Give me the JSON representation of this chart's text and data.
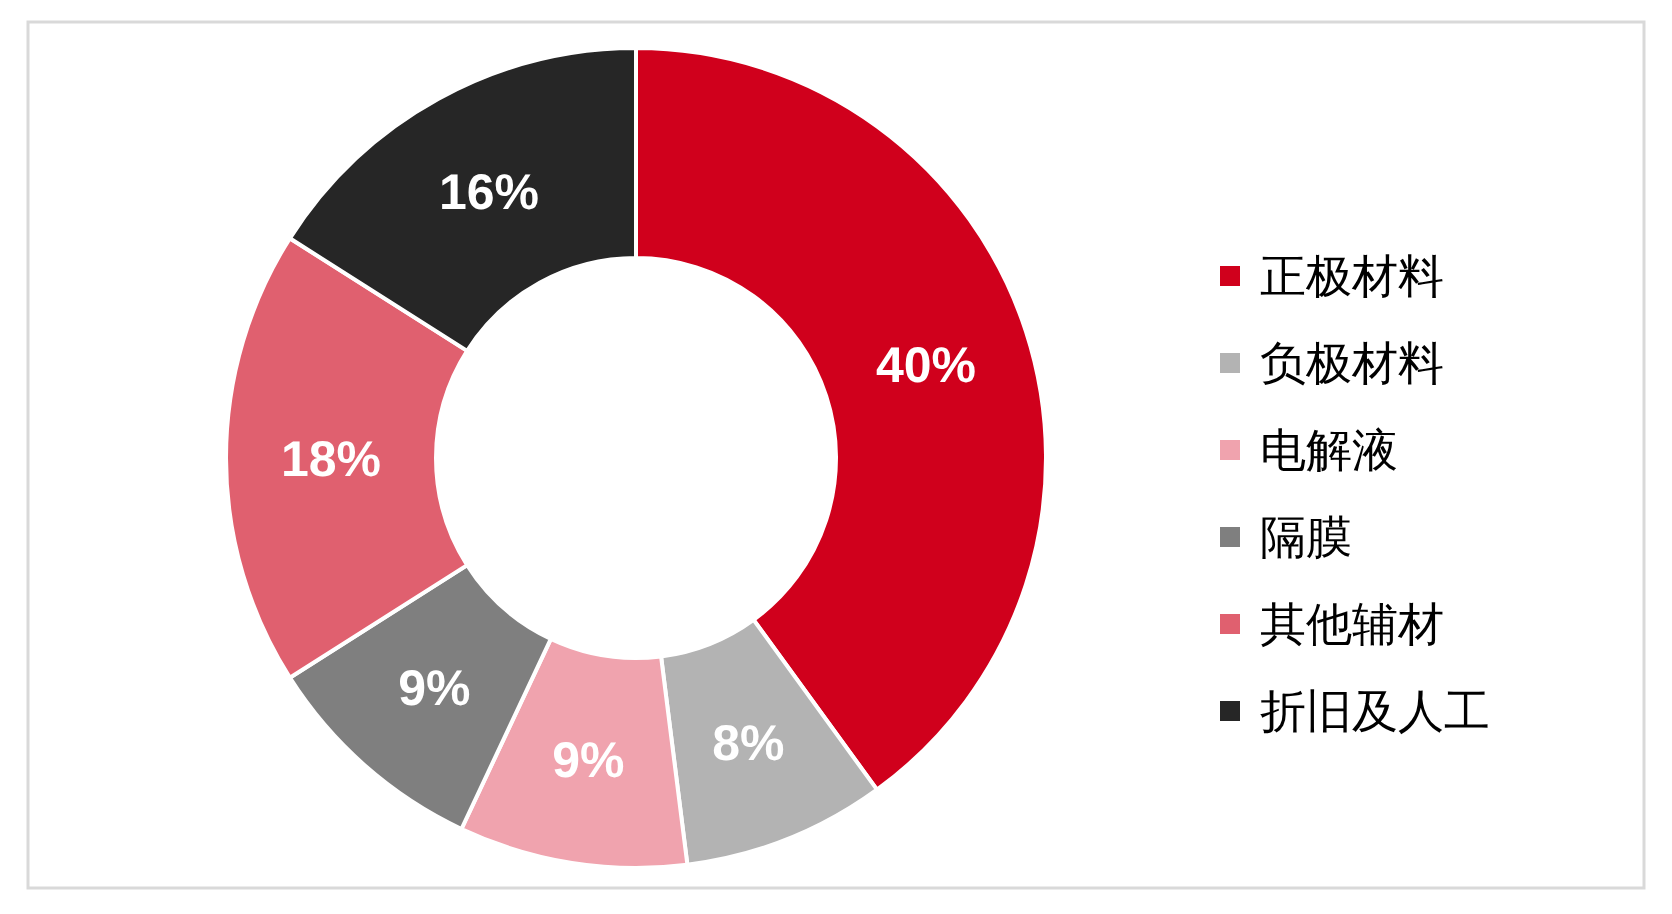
{
  "chart_data": {
    "type": "donut",
    "categories": [
      "正极材料",
      "负极材料",
      "电解液",
      "隔膜",
      "其他辅材",
      "折旧及人工"
    ],
    "values": [
      40,
      8,
      9,
      9,
      18,
      16
    ],
    "colors": [
      "#d0001c",
      "#b3b3b3",
      "#f0a3ae",
      "#7f7f7f",
      "#e0606f",
      "#262626"
    ],
    "value_labels": [
      "40%",
      "8%",
      "9%",
      "9%",
      "18%",
      "16%"
    ],
    "legend": "right"
  }
}
